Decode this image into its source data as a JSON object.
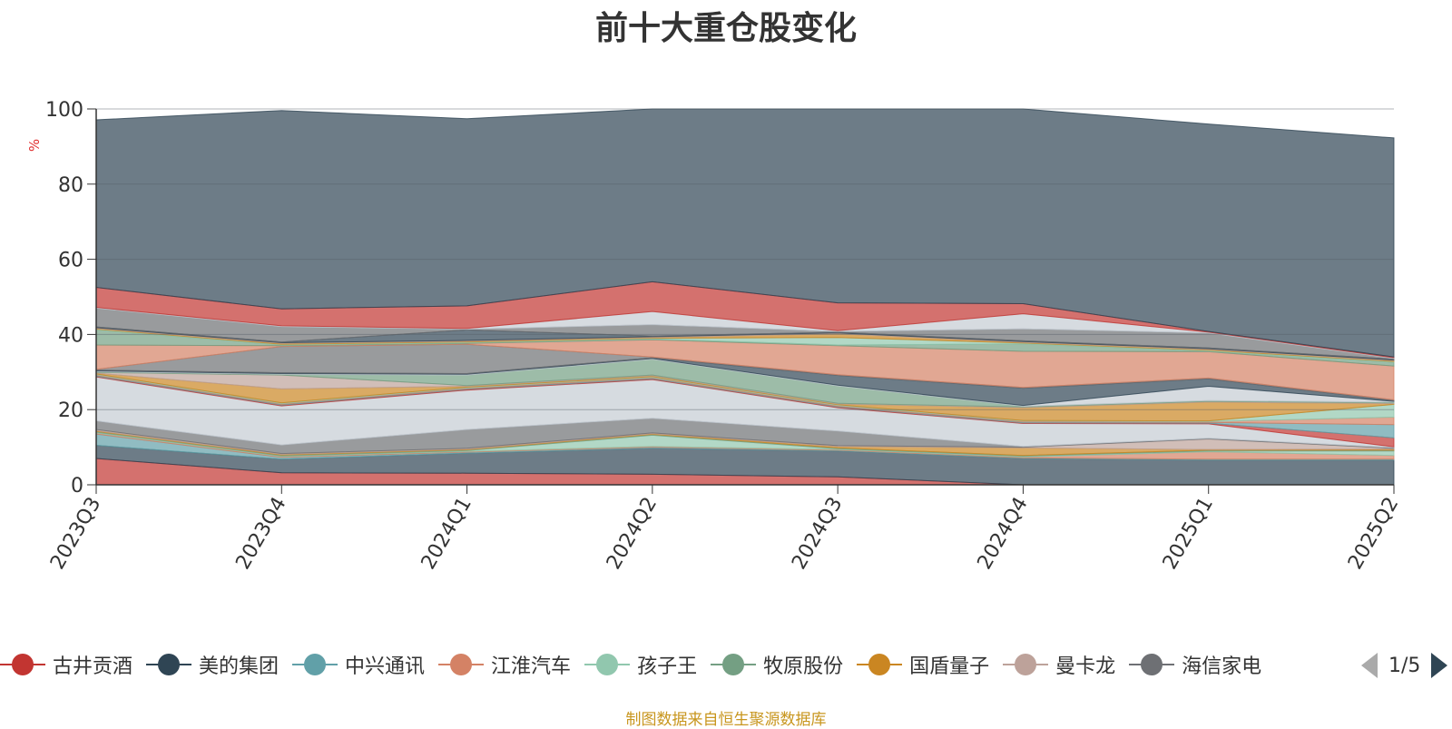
{
  "chart_data": {
    "type": "area",
    "stacked": true,
    "title": "前十大重仓股变化",
    "ylabel": "%",
    "xlabel": "",
    "ylim": [
      0,
      100
    ],
    "yticks": [
      0,
      20,
      40,
      60,
      80,
      100
    ],
    "grid": true,
    "legend_position": "bottom",
    "categories": [
      "2023Q3",
      "2023Q4",
      "2024Q1",
      "2024Q2",
      "2024Q3",
      "2024Q4",
      "2025Q1",
      "2025Q2"
    ],
    "series": [
      {
        "name": "古井贡酒",
        "color": "#c23531",
        "values": [
          7.0,
          3.2,
          3.1,
          2.8,
          2.1,
          0.0,
          0.0,
          0.0
        ]
      },
      {
        "name": "美的集团",
        "color": "#2f4554",
        "values": [
          3.5,
          3.6,
          5.3,
          6.9,
          6.9,
          7.0,
          6.6,
          6.6
        ]
      },
      {
        "name": "中兴通讯",
        "color": "#61a0a8",
        "values": [
          3.0,
          0.5,
          0.3,
          0.3,
          0.2,
          0.2,
          0.2,
          0.2
        ]
      },
      {
        "name": "江淮汽车",
        "color": "#d48265",
        "values": [
          0.3,
          0.2,
          0.2,
          0.2,
          0.2,
          0.2,
          2.0,
          1.0
        ]
      },
      {
        "name": "孩子王",
        "color": "#91c7ae",
        "values": [
          0.2,
          0.2,
          0.2,
          3.0,
          0.2,
          0.2,
          0.2,
          1.2
        ]
      },
      {
        "name": "牧原股份",
        "color": "#749f83",
        "values": [
          0.2,
          0.2,
          0.2,
          0.2,
          0.2,
          0.2,
          0.2,
          0.2
        ]
      },
      {
        "name": "国盾量子",
        "color": "#ca8622",
        "values": [
          0.2,
          0.2,
          0.2,
          0.2,
          0.4,
          2.0,
          0.2,
          0.3
        ]
      },
      {
        "name": "曼卡龙",
        "color": "#bda29a",
        "values": [
          0.3,
          0.2,
          0.2,
          0.2,
          0.2,
          0.2,
          2.8,
          0.2
        ]
      },
      {
        "name": "海信家电",
        "color": "#6e7074",
        "values": [
          2.3,
          2.3,
          5.0,
          3.9,
          3.9,
          0.2,
          0.2,
          0.2
        ]
      },
      {
        "name": "",
        "color": "#c4ccd3",
        "values": [
          11.7,
          10.4,
          10.5,
          10.3,
          6.2,
          6.1,
          3.8,
          0.2
        ]
      },
      {
        "name": "",
        "color": "#c23531",
        "values": [
          0.2,
          0.2,
          0.2,
          0.2,
          0.2,
          0.2,
          0.2,
          2.4
        ]
      },
      {
        "name": "",
        "color": "#61a0a8",
        "values": [
          0.2,
          0.2,
          0.2,
          0.2,
          0.2,
          0.2,
          0.2,
          3.5
        ]
      },
      {
        "name": "",
        "color": "#d48265",
        "values": [
          0.2,
          0.2,
          0.2,
          0.2,
          0.2,
          0.2,
          0.2,
          2.0
        ]
      },
      {
        "name": "",
        "color": "#91c7ae",
        "values": [
          0.2,
          0.2,
          0.2,
          0.2,
          0.2,
          0.2,
          0.2,
          3.4
        ]
      },
      {
        "name": "",
        "color": "#ca8622",
        "values": [
          0.2,
          3.7,
          0.2,
          0.2,
          0.2,
          3.4,
          5.0,
          0.2
        ]
      },
      {
        "name": "",
        "color": "#bda29a",
        "values": [
          0.2,
          3.7,
          0.2,
          0.2,
          0.2,
          0.2,
          0.2,
          0.2
        ]
      },
      {
        "name": "",
        "color": "#749f83",
        "values": [
          0.2,
          0.2,
          2.8,
          4.2,
          4.6,
          0.2,
          0.2,
          0.2
        ]
      },
      {
        "name": "",
        "color": "#c4ccd3",
        "values": [
          0.2,
          0.2,
          0.2,
          0.2,
          0.2,
          0.2,
          3.8,
          0.2
        ]
      },
      {
        "name": "",
        "color": "#2f4554",
        "values": [
          0.2,
          0.2,
          0.2,
          0.2,
          2.6,
          4.6,
          2.0,
          0.2
        ]
      },
      {
        "name": "",
        "color": "#6e7074",
        "values": [
          0.2,
          7.0,
          7.8,
          0.2,
          0.2,
          0.2,
          0.2,
          0.2
        ]
      },
      {
        "name": "",
        "color": "#d48265",
        "values": [
          6.5,
          0.2,
          0.2,
          4.6,
          7.7,
          9.6,
          7.0,
          9.0
        ]
      },
      {
        "name": "",
        "color": "#749f83",
        "values": [
          4.0,
          0.2,
          0.2,
          0.2,
          0.2,
          2.0,
          0.2,
          1.0
        ]
      },
      {
        "name": "",
        "color": "#91c7ae",
        "values": [
          0.2,
          0.2,
          0.2,
          0.2,
          2.0,
          0.2,
          0.2,
          0.2
        ]
      },
      {
        "name": "",
        "color": "#ca8622",
        "values": [
          0.2,
          0.2,
          0.2,
          0.2,
          1.0,
          0.2,
          0.2,
          0.2
        ]
      },
      {
        "name": "",
        "color": "#bda29a",
        "values": [
          0.2,
          0.2,
          0.2,
          0.2,
          0.2,
          0.2,
          0.2,
          0.2
        ]
      },
      {
        "name": "",
        "color": "#2f4554",
        "values": [
          0.2,
          0.2,
          2.8,
          0.2,
          0.2,
          0.2,
          0.2,
          0.2
        ]
      },
      {
        "name": "",
        "color": "#6e7074",
        "values": [
          5.0,
          4.1,
          0.2,
          3.0,
          0.2,
          3.2,
          4.0,
          0.2
        ]
      },
      {
        "name": "",
        "color": "#c4ccd3",
        "values": [
          0.2,
          0.2,
          0.2,
          3.5,
          0.2,
          4.0,
          0.2,
          0.2
        ]
      },
      {
        "name": "",
        "color": "#c23531",
        "values": [
          5.3,
          4.5,
          6.0,
          7.9,
          7.4,
          2.7,
          0.2,
          0.2
        ]
      },
      {
        "name": "",
        "color": "#2f4554",
        "values": [
          44.6,
          52.8,
          49.8,
          48.9,
          53.8,
          52.4,
          55.2,
          58.3
        ]
      }
    ]
  },
  "legend": {
    "items": [
      {
        "label": "古井贡酒",
        "color": "#c23531"
      },
      {
        "label": "美的集团",
        "color": "#2f4554"
      },
      {
        "label": "中兴通讯",
        "color": "#61a0a8"
      },
      {
        "label": "江淮汽车",
        "color": "#d48265"
      },
      {
        "label": "孩子王",
        "color": "#91c7ae"
      },
      {
        "label": "牧原股份",
        "color": "#749f83"
      },
      {
        "label": "国盾量子",
        "color": "#ca8622"
      },
      {
        "label": "曼卡龙",
        "color": "#bda29a"
      },
      {
        "label": "海信家电",
        "color": "#6e7074"
      }
    ],
    "page_indicator": "1/5"
  },
  "source_note": "制图数据来自恒生聚源数据库"
}
